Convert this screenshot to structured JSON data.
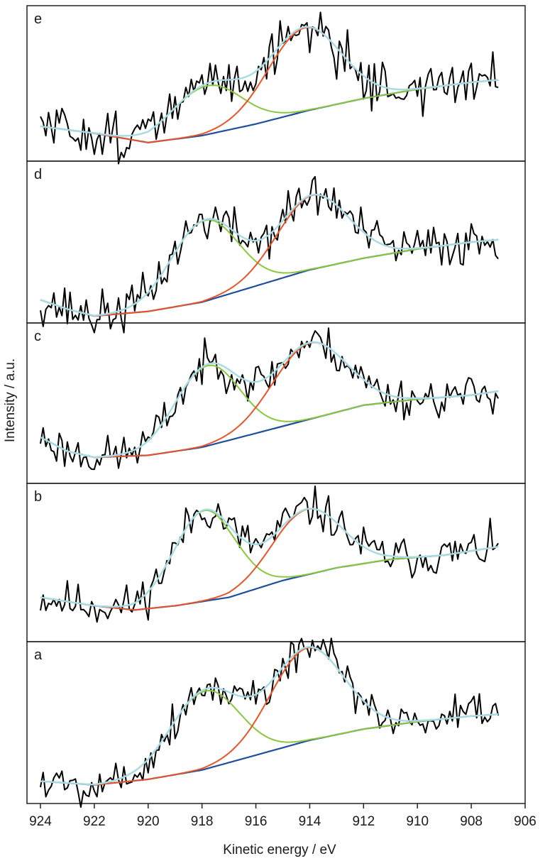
{
  "chart_data": {
    "type": "line",
    "ylabel": "Intensity / a.u.",
    "xlabel": "Kinetic energy / eV",
    "xlim": [
      924.5,
      906
    ],
    "xticks": [
      "924",
      "922",
      "920",
      "918",
      "916",
      "914",
      "912",
      "910",
      "908",
      "906"
    ],
    "panels": [
      {
        "label": "e",
        "y_range": [
          0.3,
          0.97
        ],
        "baseline": [
          [
            924,
            0.45
          ],
          [
            922,
            0.42
          ],
          [
            920,
            0.38
          ],
          [
            918,
            0.41
          ],
          [
            916,
            0.46
          ],
          [
            914,
            0.52
          ],
          [
            912,
            0.57
          ],
          [
            910,
            0.61
          ],
          [
            908,
            0.64
          ],
          [
            907,
            0.65
          ]
        ],
        "peak1": {
          "center": 917.8,
          "fwhm": 3.0,
          "height": 0.21
        },
        "peak2": {
          "center": 914.2,
          "fwhm": 3.2,
          "height": 0.36
        },
        "noise": 0.075,
        "seed": 51
      },
      {
        "label": "d",
        "y_range": [
          0.3,
          1.0
        ],
        "baseline": [
          [
            924,
            0.4
          ],
          [
            923,
            0.36
          ],
          [
            922,
            0.33
          ],
          [
            920,
            0.35
          ],
          [
            918,
            0.39
          ],
          [
            916,
            0.46
          ],
          [
            914,
            0.53
          ],
          [
            912,
            0.58
          ],
          [
            910,
            0.62
          ],
          [
            908,
            0.65
          ],
          [
            907,
            0.66
          ]
        ],
        "peak1": {
          "center": 917.9,
          "fwhm": 2.9,
          "height": 0.35
        },
        "peak2": {
          "center": 913.9,
          "fwhm": 3.1,
          "height": 0.32
        },
        "noise": 0.07,
        "seed": 37
      },
      {
        "label": "c",
        "y_range": [
          0.2,
          1.0
        ],
        "baseline": [
          [
            924,
            0.43
          ],
          [
            923,
            0.36
          ],
          [
            922,
            0.33
          ],
          [
            920,
            0.34
          ],
          [
            918,
            0.38
          ],
          [
            916,
            0.45
          ],
          [
            914,
            0.52
          ],
          [
            912,
            0.59
          ],
          [
            910,
            0.62
          ],
          [
            908,
            0.64
          ],
          [
            907,
            0.66
          ]
        ],
        "peak1": {
          "center": 917.8,
          "fwhm": 2.8,
          "height": 0.4
        },
        "peak2": {
          "center": 914.0,
          "fwhm": 3.2,
          "height": 0.38
        },
        "noise": 0.07,
        "seed": 23
      },
      {
        "label": "b",
        "y_range": [
          0.25,
          1.0
        ],
        "baseline": [
          [
            924,
            0.46
          ],
          [
            922,
            0.42
          ],
          [
            920.5,
            0.4
          ],
          [
            919,
            0.42
          ],
          [
            917,
            0.46
          ],
          [
            915,
            0.54
          ],
          [
            913,
            0.6
          ],
          [
            911,
            0.64
          ],
          [
            909,
            0.66
          ],
          [
            907,
            0.7
          ]
        ],
        "peak1": {
          "center": 917.9,
          "fwhm": 2.7,
          "height": 0.43
        },
        "peak2": {
          "center": 914.1,
          "fwhm": 3.0,
          "height": 0.31
        },
        "noise": 0.07,
        "seed": 11
      },
      {
        "label": "a",
        "y_range": [
          0.1,
          0.97
        ],
        "baseline": [
          [
            924,
            0.22
          ],
          [
            922,
            0.2
          ],
          [
            920,
            0.23
          ],
          [
            918,
            0.28
          ],
          [
            916,
            0.36
          ],
          [
            914,
            0.44
          ],
          [
            912,
            0.5
          ],
          [
            910,
            0.54
          ],
          [
            908,
            0.57
          ],
          [
            907,
            0.58
          ]
        ],
        "peak1": {
          "center": 917.9,
          "fwhm": 3.0,
          "height": 0.42
        },
        "peak2": {
          "center": 914.1,
          "fwhm": 3.2,
          "height": 0.5
        },
        "noise": 0.08,
        "seed": 5
      }
    ],
    "colors": {
      "data": "#000000",
      "baseline": "#1f4e9c",
      "peak_1": "#8cc63f",
      "peak_2": "#e8542a",
      "envelope": "#a8dbe3"
    }
  }
}
